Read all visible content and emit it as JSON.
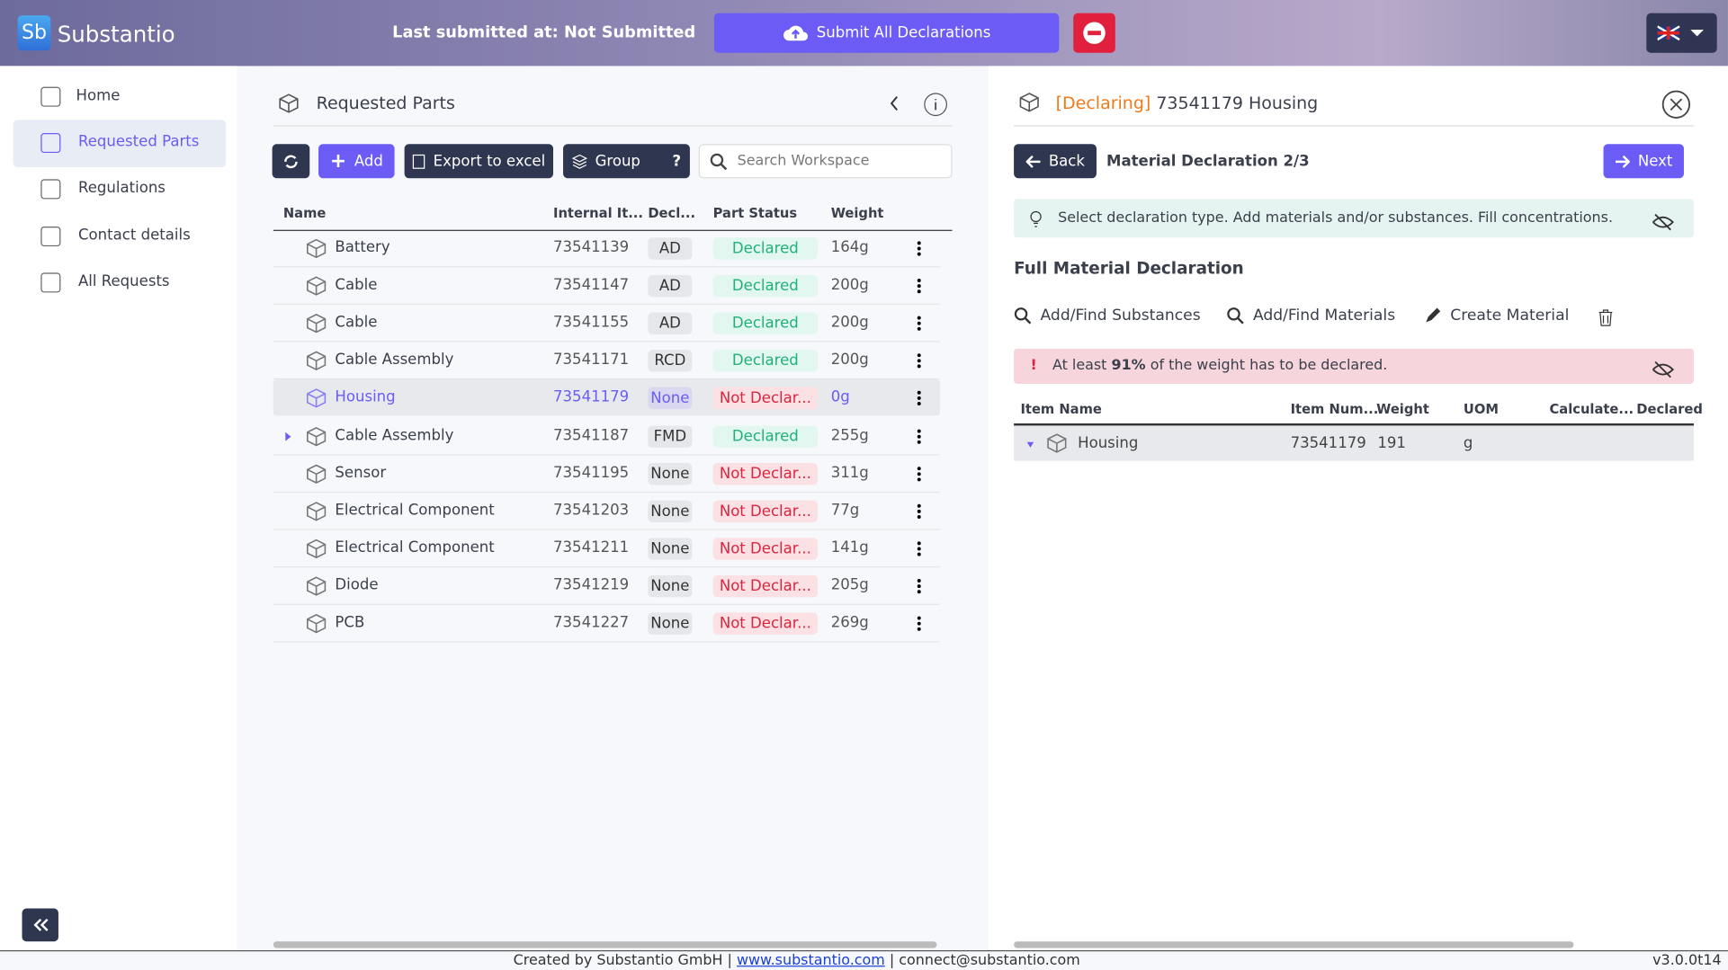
{
  "header": {
    "logo": "Sb",
    "brand": "Substantio",
    "last_submitted_label": "Last submitted at:",
    "last_submitted_value": "Not Submitted",
    "submit_button": "Submit All Declarations"
  },
  "sidebar": [
    "Home",
    "Requested Parts",
    "Regulations",
    "Contact details",
    "All Requests"
  ],
  "parts_panel": {
    "title": "Requested Parts",
    "add": "Add",
    "export": "Export to excel",
    "group": "Group",
    "group_help": "?",
    "search_placeholder": "Search Workspace",
    "columns": [
      "Name",
      "Internal It...",
      "Decl...",
      "Part Status",
      "Weight"
    ],
    "rows": [
      [
        "Battery",
        "73541139",
        "AD",
        "Declared",
        "164g"
      ],
      [
        "Cable",
        "73541147",
        "AD",
        "Declared",
        "200g"
      ],
      [
        "Cable",
        "73541155",
        "AD",
        "Declared",
        "200g"
      ],
      [
        "Cable Assembly",
        "73541171",
        "RCD",
        "Declared",
        "200g"
      ],
      [
        "Housing",
        "73541179",
        "None",
        "Not Declar...",
        "0g"
      ],
      [
        "Cable Assembly",
        "73541187",
        "FMD",
        "Declared",
        "255g"
      ],
      [
        "Sensor",
        "73541195",
        "None",
        "Not Declar...",
        "311g"
      ],
      [
        "Electrical Component",
        "73541203",
        "None",
        "Not Declar...",
        "77g"
      ],
      [
        "Electrical Component",
        "73541211",
        "None",
        "Not Declar...",
        "141g"
      ],
      [
        "Diode",
        "73541219",
        "None",
        "Not Declar...",
        "205g"
      ],
      [
        "PCB",
        "73541227",
        "None",
        "Not Declar...",
        "269g"
      ]
    ]
  },
  "declaration_panel": {
    "status": "[Declaring]",
    "title": "73541179 Housing",
    "back": "Back",
    "step": "Material Declaration 2/3",
    "next": "Next",
    "hint": "Select declaration type. Add materials and/or substances. Fill concentrations.",
    "section": "Full Material Declaration",
    "actions": [
      "Add/Find Substances",
      "Add/Find Materials",
      "Create Material"
    ],
    "warning": {
      "prefix": "At least",
      "percent": "91%",
      "suffix": "of the weight has to be declared."
    },
    "columns": [
      "Item Name",
      "Item Num...",
      "Weight",
      "UOM",
      "Calculate...",
      "Declared"
    ],
    "rows": [
      [
        "Housing",
        "73541179",
        "191",
        "g"
      ]
    ]
  },
  "footer": {
    "created": "Created by Substantio GmbH",
    "website": "www.substantio.com",
    "email": "connect@substantio.com",
    "version": "v3.0.0t14"
  }
}
